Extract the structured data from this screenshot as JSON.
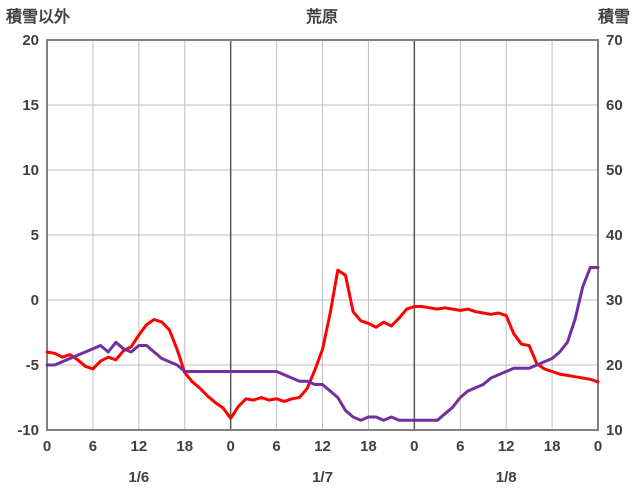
{
  "header": {
    "left_axis_title": "積雪以外",
    "chart_title": "荒原",
    "right_axis_title": "積雪"
  },
  "chart_data": {
    "type": "line",
    "title": "荒原",
    "x_hours_range": [
      0,
      72
    ],
    "x_tick_hours": [
      0,
      6,
      12,
      18,
      24,
      30,
      36,
      42,
      48,
      54,
      60,
      66,
      72
    ],
    "x_tick_labels": [
      "0",
      "6",
      "12",
      "18",
      "0",
      "6",
      "12",
      "18",
      "0",
      "6",
      "12",
      "18",
      "0"
    ],
    "day_boundary_hours": [
      24,
      48
    ],
    "day_labels": [
      {
        "label": "1/6",
        "center_hour": 12
      },
      {
        "label": "1/7",
        "center_hour": 36
      },
      {
        "label": "1/8",
        "center_hour": 60
      }
    ],
    "left_axis": {
      "title": "積雪以外",
      "min": -10,
      "max": 20,
      "ticks": [
        20,
        15,
        10,
        5,
        0,
        -5,
        -10
      ]
    },
    "right_axis": {
      "title": "積雪",
      "min": 10,
      "max": 70,
      "ticks": [
        70,
        60,
        50,
        40,
        30,
        20,
        10
      ]
    },
    "grid": true,
    "legend": "none",
    "colors": {
      "grid": "#bfbfbf",
      "day_line": "#595959",
      "border": "#808080",
      "text": "#404040"
    },
    "series": [
      {
        "name": "積雪以外",
        "axis": "left",
        "color": "#ff0000",
        "x_start_hour": 0,
        "x_step_hours": 1,
        "values": [
          -4.0,
          -4.1,
          -4.4,
          -4.2,
          -4.6,
          -5.1,
          -5.3,
          -4.7,
          -4.4,
          -4.6,
          -3.9,
          -3.6,
          -2.7,
          -1.9,
          -1.5,
          -1.7,
          -2.3,
          -3.8,
          -5.6,
          -6.3,
          -6.8,
          -7.4,
          -7.9,
          -8.3,
          -9.1,
          -8.2,
          -7.6,
          -7.7,
          -7.5,
          -7.7,
          -7.6,
          -7.8,
          -7.6,
          -7.5,
          -6.8,
          -5.4,
          -3.8,
          -1.0,
          2.3,
          1.9,
          -0.9,
          -1.6,
          -1.8,
          -2.1,
          -1.7,
          -2.0,
          -1.4,
          -0.7,
          -0.5,
          -0.5,
          -0.6,
          -0.7,
          -0.6,
          -0.7,
          -0.8,
          -0.7,
          -0.9,
          -1.0,
          -1.1,
          -1.0,
          -1.2,
          -2.6,
          -3.4,
          -3.5,
          -4.9,
          -5.3,
          -5.5,
          -5.7,
          -5.8,
          -5.9,
          -6.0,
          -6.1,
          -6.3
        ]
      },
      {
        "name": "積雪",
        "axis": "right",
        "color": "#7030a0",
        "x_start_hour": 0,
        "x_step_hours": 1,
        "values": [
          20,
          20,
          20.5,
          21,
          21.5,
          22,
          22.5,
          23,
          22,
          23.5,
          22.5,
          22,
          23,
          23,
          22,
          21,
          20.5,
          20,
          19,
          19,
          19,
          19,
          19,
          19,
          19,
          19,
          19,
          19,
          19,
          19,
          19,
          18.5,
          18,
          17.5,
          17.5,
          17,
          17,
          16,
          15,
          13,
          12,
          11.5,
          12,
          12,
          11.5,
          12,
          11.5,
          11.5,
          11.5,
          11.5,
          11.5,
          11.5,
          12.5,
          13.5,
          15,
          16,
          16.5,
          17,
          18,
          18.5,
          19,
          19.5,
          19.5,
          19.5,
          20,
          20.5,
          21,
          22,
          23.5,
          27,
          32,
          35,
          35
        ]
      }
    ]
  }
}
